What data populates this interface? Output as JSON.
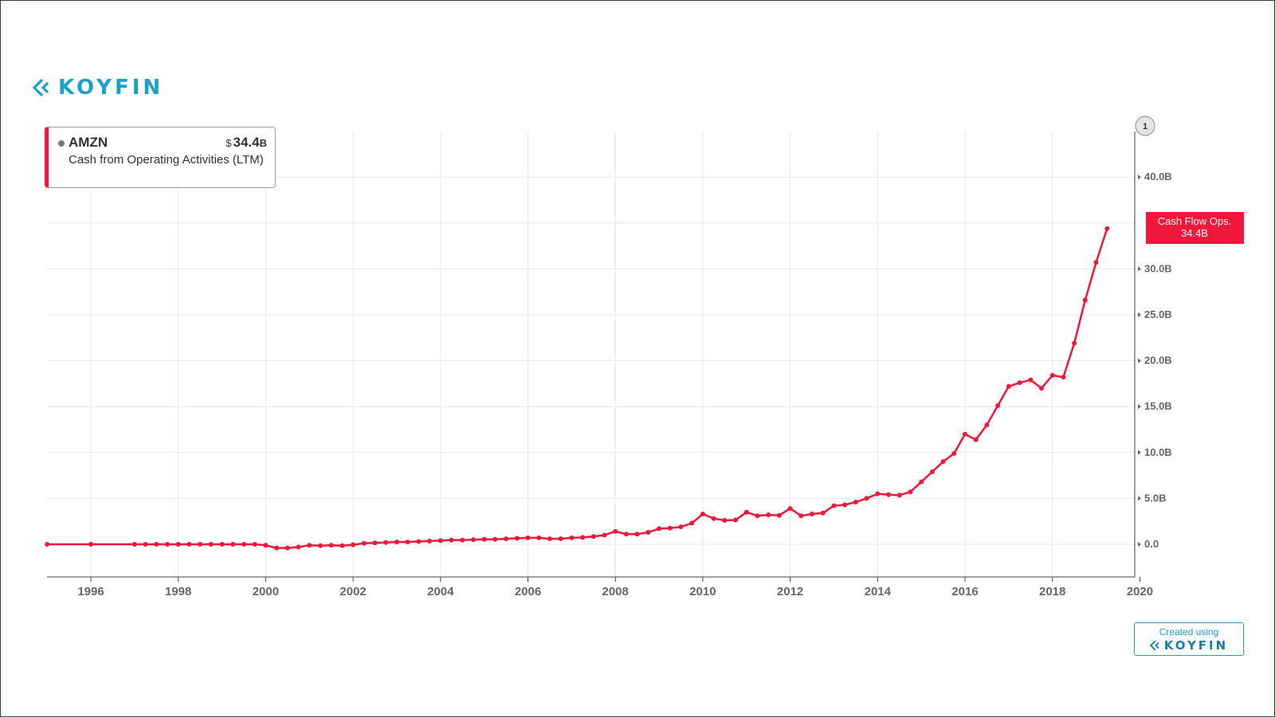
{
  "brand": {
    "name": "KOYFIN",
    "icon": "koyfin-chevron-icon",
    "color": "#1aa3c9"
  },
  "legend": {
    "ticker": "AMZN",
    "currency": "$",
    "value": "34.4",
    "value_suffix": "B",
    "description": "Cash from Operating Activities (LTM)",
    "accent_color": "#f0173a"
  },
  "series_badge": {
    "line1": "Cash Flow Ops.",
    "line2": "34.4B",
    "color": "#f0173a"
  },
  "pin_marker": {
    "label": "1"
  },
  "credit": {
    "line1": "Created using",
    "brand": "KOYFIN"
  },
  "chart_data": {
    "type": "line",
    "x_unit": "year",
    "xlim": [
      1995,
      2020
    ],
    "ylim": [
      -4,
      45
    ],
    "x_ticks": [
      1996,
      1998,
      2000,
      2002,
      2004,
      2006,
      2008,
      2010,
      2012,
      2014,
      2016,
      2018,
      2020
    ],
    "x_tick_labels": [
      "1996",
      "1998",
      "2000",
      "2002",
      "2004",
      "2006",
      "2008",
      "2010",
      "2012",
      "2014",
      "2016",
      "2018",
      "2020"
    ],
    "y_ticks": [
      0,
      5,
      10,
      15,
      20,
      25,
      30,
      35,
      40
    ],
    "y_tick_labels": [
      "0.0",
      "5.0B",
      "10.0B",
      "15.0B",
      "20.0B",
      "25.0B",
      "30.0B",
      "",
      "40.0B"
    ],
    "grid": true,
    "y_axis_position": "right",
    "series": [
      {
        "name": "Cash Flow Ops.",
        "color": "#f0173a",
        "x": [
          1995.0,
          1996.0,
          1997.0,
          1997.25,
          1997.5,
          1997.75,
          1998.0,
          1998.25,
          1998.5,
          1998.75,
          1999.0,
          1999.25,
          1999.5,
          1999.75,
          2000.0,
          2000.25,
          2000.5,
          2000.75,
          2001.0,
          2001.25,
          2001.5,
          2001.75,
          2002.0,
          2002.25,
          2002.5,
          2002.75,
          2003.0,
          2003.25,
          2003.5,
          2003.75,
          2004.0,
          2004.25,
          2004.5,
          2004.75,
          2005.0,
          2005.25,
          2005.5,
          2005.75,
          2006.0,
          2006.25,
          2006.5,
          2006.75,
          2007.0,
          2007.25,
          2007.5,
          2007.75,
          2008.0,
          2008.25,
          2008.5,
          2008.75,
          2009.0,
          2009.25,
          2009.5,
          2009.75,
          2010.0,
          2010.25,
          2010.5,
          2010.75,
          2011.0,
          2011.25,
          2011.5,
          2011.75,
          2012.0,
          2012.25,
          2012.5,
          2012.75,
          2013.0,
          2013.25,
          2013.5,
          2013.75,
          2014.0,
          2014.25,
          2014.5,
          2014.75,
          2015.0,
          2015.25,
          2015.5,
          2015.75,
          2016.0,
          2016.25,
          2016.5,
          2016.75,
          2017.0,
          2017.25,
          2017.5,
          2017.75,
          2018.0,
          2018.25,
          2018.5,
          2018.75,
          2019.0,
          2019.25
        ],
        "values": [
          0.0,
          0.0,
          0.0,
          0.0,
          0.0,
          0.0,
          0.0,
          0.0,
          0.0,
          0.0,
          0.0,
          0.0,
          0.0,
          0.0,
          -0.1,
          -0.4,
          -0.4,
          -0.3,
          -0.1,
          -0.15,
          -0.1,
          -0.15,
          -0.05,
          0.1,
          0.15,
          0.2,
          0.25,
          0.25,
          0.3,
          0.35,
          0.4,
          0.45,
          0.45,
          0.5,
          0.55,
          0.55,
          0.6,
          0.65,
          0.7,
          0.7,
          0.6,
          0.6,
          0.7,
          0.75,
          0.85,
          1.0,
          1.4,
          1.1,
          1.1,
          1.3,
          1.7,
          1.75,
          1.9,
          2.3,
          3.3,
          2.8,
          2.6,
          2.65,
          3.5,
          3.1,
          3.2,
          3.15,
          3.9,
          3.1,
          3.3,
          3.4,
          4.2,
          4.3,
          4.6,
          5.0,
          5.5,
          5.4,
          5.35,
          5.7,
          6.8,
          7.9,
          9.0,
          9.9,
          12.0,
          11.4,
          13.0,
          15.1,
          17.2,
          17.6,
          17.9,
          17.0,
          18.4,
          18.2,
          21.9,
          26.6,
          30.7,
          34.4
        ]
      }
    ]
  }
}
